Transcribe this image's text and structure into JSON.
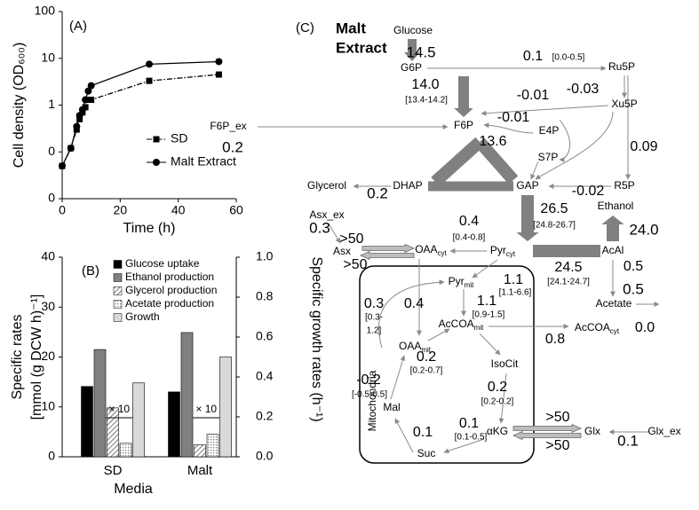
{
  "chart_data": [
    {
      "type": "line",
      "label": "(A)",
      "xlabel": "Time (h)",
      "ylabel": "Cell density (OD₆₀₀)",
      "log_y": true,
      "x": [
        0,
        3,
        5,
        6,
        7,
        8,
        9,
        10,
        30,
        54
      ],
      "xlim": [
        0,
        60
      ],
      "xticks": [
        0,
        20,
        40,
        60
      ],
      "ylim": [
        0.01,
        100
      ],
      "yticks": [
        {
          "value": 0.01,
          "label": "0"
        },
        {
          "value": 0.1,
          "label": "0"
        },
        1,
        10,
        100
      ],
      "legend": "right",
      "series": [
        {
          "name": "SD",
          "color": "#000000",
          "marker": "square",
          "dash": "dashdot",
          "values": [
            0.05,
            0.12,
            0.3,
            0.5,
            0.7,
            0.9,
            1.3,
            1.3,
            3.3,
            4.5
          ]
        },
        {
          "name": "Malt Extract",
          "color": "#000000",
          "marker": "circle",
          "values": [
            0.05,
            0.12,
            0.35,
            0.6,
            0.8,
            1.3,
            2.0,
            2.6,
            7.5,
            8.5
          ]
        }
      ]
    },
    {
      "type": "bar",
      "label": "(B)",
      "xlabel": "Media",
      "ylabel": [
        "Specific rates",
        "[mmol (g DCW h)⁻¹]"
      ],
      "y2label": "Specific growth rates (h⁻¹)",
      "categories": [
        "SD",
        "Malt"
      ],
      "ylim": [
        0,
        40
      ],
      "yticks": [
        0,
        10,
        20,
        30,
        40
      ],
      "y2lim": [
        0,
        1
      ],
      "y2ticks": [
        {
          "value": 0,
          "label": "0.0"
        },
        0.2,
        0.4,
        0.6,
        0.8,
        {
          "value": 1,
          "label": "1.0"
        }
      ],
      "annotations": [
        "× 10",
        "× 10"
      ],
      "series": [
        {
          "name": "Glucose uptake",
          "color": "#000000",
          "values": [
            14.1,
            13.0
          ]
        },
        {
          "name": "Ethanol production",
          "color": "#808080",
          "values": [
            21.5,
            24.9
          ]
        },
        {
          "name": "Glycerol production",
          "color": "#bfbfbf",
          "hatch": "diagonal",
          "values": [
            9.8,
            2.4
          ]
        },
        {
          "name": "Acetate production",
          "color": "#bfbfbf",
          "hatch": "dots",
          "values": [
            2.7,
            4.5
          ]
        },
        {
          "name": "Growth",
          "color": "#d9d9d9",
          "axis": "y2",
          "values": [
            0.37,
            0.5
          ]
        }
      ]
    }
  ],
  "diagram": {
    "label": "(C)",
    "title": [
      "Malt",
      "Extract"
    ],
    "compartment": "Mitochondria",
    "nodes": [
      {
        "label": "Glucose"
      },
      {
        "label": "G6P"
      },
      {
        "label": "Ru5P"
      },
      {
        "label": "Xu5P"
      },
      {
        "label": "F6P_ex"
      },
      {
        "label": "F6P"
      },
      {
        "label": "E4P"
      },
      {
        "label": "S7P"
      },
      {
        "label": "Glycerol"
      },
      {
        "label": "DHAP"
      },
      {
        "label": "GAP"
      },
      {
        "label": "R5P"
      },
      {
        "label": "Asx_ex"
      },
      {
        "label": "Ethanol"
      },
      {
        "label": "Asx"
      },
      {
        "label": "OAA",
        "sub": "cyt"
      },
      {
        "label": "Pyr",
        "sub": "cyt"
      },
      {
        "label": "AcAl"
      },
      {
        "label": "Pyr",
        "sub": "mit"
      },
      {
        "label": "Acetate"
      },
      {
        "label": "AcCOA",
        "sub": "mit"
      },
      {
        "label": "AcCOA",
        "sub": "cyt"
      },
      {
        "label": "OAA",
        "sub": "mit"
      },
      {
        "label": "IsoCit"
      },
      {
        "label": "Mal"
      },
      {
        "label": "αKG"
      },
      {
        "label": "Glx"
      },
      {
        "label": "Glx_ex"
      },
      {
        "label": "Suc"
      }
    ],
    "fluxes": [
      {
        "value": "14.5",
        "color": "#e00000"
      },
      {
        "value": "0.1",
        "range": [
          "[0.0-0.5]"
        ]
      },
      {
        "value": "14.0",
        "range": [
          "[13.4-14.2]"
        ]
      },
      {
        "value": "-0.01"
      },
      {
        "value": "-0.03"
      },
      {
        "value": "-0.01"
      },
      {
        "value": "0.2",
        "color": "#e00000"
      },
      {
        "value": "13.6"
      },
      {
        "value": "0.09"
      },
      {
        "value": "0.2",
        "color": "#e00000"
      },
      {
        "value": "-0.02"
      },
      {
        "value": "26.5",
        "range": [
          "[24.8-26.7]"
        ]
      },
      {
        "value": "0.3",
        "color": "#e00000"
      },
      {
        "value": ">50"
      },
      {
        "value": ">50"
      },
      {
        "value": "0.4",
        "range": [
          "[0.4-0.8]"
        ]
      },
      {
        "value": "24.0",
        "color": "#e00000"
      },
      {
        "value": "24.5",
        "range": [
          "[24.1-24.7]"
        ]
      },
      {
        "value": "0.5"
      },
      {
        "value": "0.5",
        "color": "#e00000"
      },
      {
        "value": "1.1",
        "range": [
          "[1.1-6.6]"
        ]
      },
      {
        "value": "0.3",
        "range": [
          "[0.3-",
          "1.2]"
        ]
      },
      {
        "value": "0.4"
      },
      {
        "value": "1.1",
        "range": [
          "[0.9-1.5]"
        ]
      },
      {
        "value": "0.8"
      },
      {
        "value": "0.0"
      },
      {
        "value": "0.2",
        "range": [
          "[0.2-0.7]"
        ]
      },
      {
        "value": "-0.2",
        "range": [
          "[-0.5-0.5]"
        ]
      },
      {
        "value": "0.2",
        "range": [
          "[0.2-0.2]"
        ]
      },
      {
        "value": "0.1"
      },
      {
        "value": "0.1",
        "range": [
          "[0.1-0.5]"
        ]
      },
      {
        "value": ">50"
      },
      {
        "value": ">50"
      },
      {
        "value": "0.1",
        "color": "#e00000"
      }
    ]
  }
}
